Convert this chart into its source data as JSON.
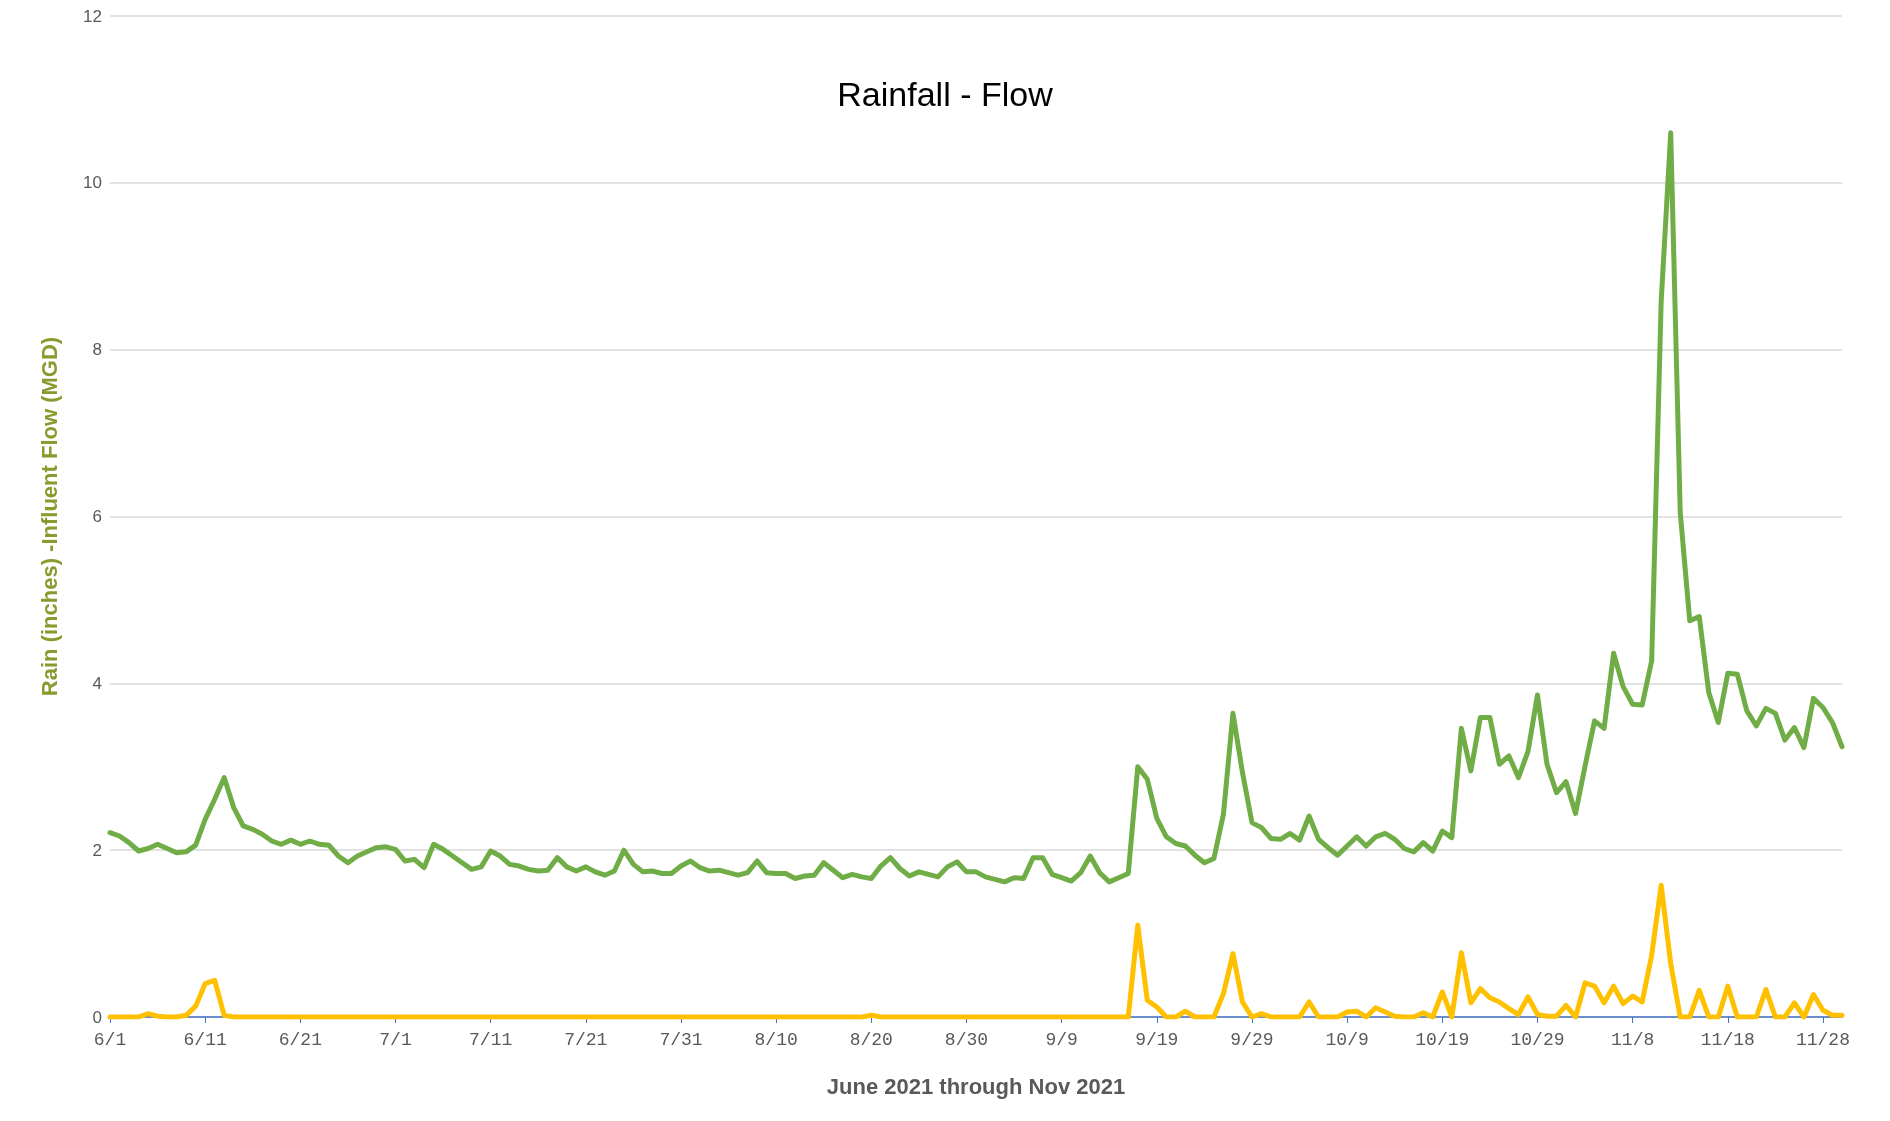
{
  "chart_data": {
    "type": "line",
    "title": "Rainfall - Flow",
    "xlabel": "June 2021 through Nov 2021",
    "ylabel": "Rain (inches) -Influent Flow (MGD)",
    "x": [
      "2021-06-01",
      "2021-06-02",
      "2021-06-03",
      "2021-06-04",
      "2021-06-05",
      "2021-06-06",
      "2021-06-07",
      "2021-06-08",
      "2021-06-09",
      "2021-06-10",
      "2021-06-11",
      "2021-06-12",
      "2021-06-13",
      "2021-06-14",
      "2021-06-15",
      "2021-06-16",
      "2021-06-17",
      "2021-06-18",
      "2021-06-19",
      "2021-06-20",
      "2021-06-21",
      "2021-06-22",
      "2021-06-23",
      "2021-06-24",
      "2021-06-25",
      "2021-06-26",
      "2021-06-27",
      "2021-06-28",
      "2021-06-29",
      "2021-06-30",
      "2021-07-01",
      "2021-07-02",
      "2021-07-03",
      "2021-07-04",
      "2021-07-05",
      "2021-07-06",
      "2021-07-07",
      "2021-07-08",
      "2021-07-09",
      "2021-07-10",
      "2021-07-11",
      "2021-07-12",
      "2021-07-13",
      "2021-07-14",
      "2021-07-15",
      "2021-07-16",
      "2021-07-17",
      "2021-07-18",
      "2021-07-19",
      "2021-07-20",
      "2021-07-21",
      "2021-07-22",
      "2021-07-23",
      "2021-07-24",
      "2021-07-25",
      "2021-07-26",
      "2021-07-27",
      "2021-07-28",
      "2021-07-29",
      "2021-07-30",
      "2021-07-31",
      "2021-08-01",
      "2021-08-02",
      "2021-08-03",
      "2021-08-04",
      "2021-08-05",
      "2021-08-06",
      "2021-08-07",
      "2021-08-08",
      "2021-08-09",
      "2021-08-10",
      "2021-08-11",
      "2021-08-12",
      "2021-08-13",
      "2021-08-14",
      "2021-08-15",
      "2021-08-16",
      "2021-08-17",
      "2021-08-18",
      "2021-08-19",
      "2021-08-20",
      "2021-08-21",
      "2021-08-22",
      "2021-08-23",
      "2021-08-24",
      "2021-08-25",
      "2021-08-26",
      "2021-08-27",
      "2021-08-28",
      "2021-08-29",
      "2021-08-30",
      "2021-08-31",
      "2021-09-01",
      "2021-09-02",
      "2021-09-03",
      "2021-09-04",
      "2021-09-05",
      "2021-09-06",
      "2021-09-07",
      "2021-09-08",
      "2021-09-09",
      "2021-09-10",
      "2021-09-11",
      "2021-09-12",
      "2021-09-13",
      "2021-09-14",
      "2021-09-15",
      "2021-09-16",
      "2021-09-17",
      "2021-09-18",
      "2021-09-19",
      "2021-09-20",
      "2021-09-21",
      "2021-09-22",
      "2021-09-23",
      "2021-09-24",
      "2021-09-25",
      "2021-09-26",
      "2021-09-27",
      "2021-09-28",
      "2021-09-29",
      "2021-09-30",
      "2021-10-01",
      "2021-10-02",
      "2021-10-03",
      "2021-10-04",
      "2021-10-05",
      "2021-10-06",
      "2021-10-07",
      "2021-10-08",
      "2021-10-09",
      "2021-10-10",
      "2021-10-11",
      "2021-10-12",
      "2021-10-13",
      "2021-10-14",
      "2021-10-15",
      "2021-10-16",
      "2021-10-17",
      "2021-10-18",
      "2021-10-19",
      "2021-10-20",
      "2021-10-21",
      "2021-10-22",
      "2021-10-23",
      "2021-10-24",
      "2021-10-25",
      "2021-10-26",
      "2021-10-27",
      "2021-10-28",
      "2021-10-29",
      "2021-10-30",
      "2021-10-31",
      "2021-11-01",
      "2021-11-02",
      "2021-11-03",
      "2021-11-04",
      "2021-11-05",
      "2021-11-06",
      "2021-11-07",
      "2021-11-08",
      "2021-11-09",
      "2021-11-10",
      "2021-11-11",
      "2021-11-12",
      "2021-11-13",
      "2021-11-14",
      "2021-11-15",
      "2021-11-16",
      "2021-11-17",
      "2021-11-18",
      "2021-11-19",
      "2021-11-20",
      "2021-11-21",
      "2021-11-22",
      "2021-11-23",
      "2021-11-24",
      "2021-11-25",
      "2021-11-26",
      "2021-11-27",
      "2021-11-28",
      "2021-11-29",
      "2021-11-30"
    ],
    "series": [
      {
        "color": "#ffc000",
        "values": [
          0,
          0,
          0,
          0,
          0.04,
          0.01,
          0,
          0,
          0.02,
          0.13,
          0.4,
          0.44,
          0.02,
          0,
          0,
          0,
          0,
          0,
          0,
          0,
          0,
          0,
          0,
          0,
          0,
          0,
          0,
          0,
          0,
          0,
          0,
          0,
          0,
          0,
          0,
          0,
          0,
          0,
          0,
          0,
          0,
          0,
          0,
          0,
          0,
          0,
          0,
          0,
          0,
          0,
          0,
          0,
          0,
          0,
          0,
          0,
          0,
          0,
          0,
          0,
          0,
          0,
          0,
          0,
          0,
          0,
          0,
          0,
          0,
          0,
          0,
          0,
          0,
          0,
          0,
          0,
          0,
          0,
          0,
          0,
          0.02,
          0,
          0,
          0,
          0,
          0,
          0,
          0,
          0,
          0,
          0,
          0,
          0,
          0,
          0,
          0,
          0,
          0,
          0,
          0,
          0,
          0,
          0,
          0,
          0,
          0,
          0,
          0,
          1.1,
          0.2,
          0.12,
          0,
          0,
          0.07,
          0,
          0,
          0,
          0.28,
          0.76,
          0.18,
          0,
          0.04,
          0,
          0,
          0,
          0,
          0.18,
          0,
          0,
          0,
          0.06,
          0.07,
          0,
          0.11,
          0.06,
          0.01,
          0,
          0,
          0.05,
          0,
          0.3,
          0,
          0.77,
          0.17,
          0.34,
          0.23,
          0.18,
          0.1,
          0.03,
          0.24,
          0.03,
          0.01,
          0.01,
          0.14,
          0,
          0.41,
          0.37,
          0.17,
          0.37,
          0.16,
          0.25,
          0.18,
          0.74,
          1.58,
          0.64,
          0,
          0,
          0.32,
          0,
          0,
          0.37,
          0,
          0,
          0,
          0.33,
          0,
          0,
          0.17,
          0,
          0.27,
          0.08,
          0.02,
          0.02
        ]
      },
      {
        "color": "#70ad47",
        "values": [
          2.21,
          2.17,
          2.09,
          1.99,
          2.02,
          2.07,
          2.02,
          1.97,
          1.98,
          2.06,
          2.37,
          2.61,
          2.87,
          2.51,
          2.29,
          2.25,
          2.19,
          2.11,
          2.07,
          2.12,
          2.07,
          2.11,
          2.07,
          2.06,
          1.93,
          1.85,
          1.93,
          1.98,
          2.03,
          2.04,
          2.01,
          1.87,
          1.89,
          1.79,
          2.07,
          2.01,
          1.93,
          1.85,
          1.77,
          1.8,
          1.99,
          1.93,
          1.83,
          1.81,
          1.77,
          1.75,
          1.76,
          1.91,
          1.8,
          1.75,
          1.8,
          1.74,
          1.7,
          1.75,
          2.0,
          1.83,
          1.74,
          1.75,
          1.72,
          1.72,
          1.81,
          1.87,
          1.79,
          1.75,
          1.76,
          1.73,
          1.7,
          1.73,
          1.87,
          1.73,
          1.72,
          1.72,
          1.66,
          1.69,
          1.7,
          1.85,
          1.76,
          1.67,
          1.71,
          1.68,
          1.66,
          1.81,
          1.91,
          1.78,
          1.69,
          1.74,
          1.71,
          1.68,
          1.8,
          1.86,
          1.74,
          1.74,
          1.68,
          1.65,
          1.62,
          1.67,
          1.66,
          1.91,
          1.91,
          1.71,
          1.67,
          1.63,
          1.73,
          1.93,
          1.73,
          1.62,
          1.67,
          1.72,
          3.0,
          2.85,
          2.38,
          2.16,
          2.08,
          2.05,
          1.94,
          1.85,
          1.9,
          2.43,
          3.64,
          2.93,
          2.33,
          2.27,
          2.14,
          2.13,
          2.2,
          2.12,
          2.41,
          2.13,
          2.03,
          1.94,
          2.05,
          2.16,
          2.05,
          2.16,
          2.2,
          2.13,
          2.02,
          1.98,
          2.09,
          1.99,
          2.23,
          2.15,
          3.46,
          2.95,
          3.59,
          3.59,
          3.03,
          3.13,
          2.87,
          3.18,
          3.86,
          3.03,
          2.69,
          2.82,
          2.44,
          3.01,
          3.55,
          3.46,
          4.36,
          3.96,
          3.75,
          3.74,
          4.27,
          8.58,
          10.6,
          6.05,
          4.75,
          4.8,
          3.89,
          3.53,
          4.12,
          4.11,
          3.67,
          3.49,
          3.7,
          3.64,
          3.32,
          3.47,
          3.23,
          3.82,
          3.71,
          3.53,
          3.24
        ]
      }
    ],
    "xlim": [
      "2021-06-01",
      "2021-11-30"
    ],
    "xticks": [
      {
        "value": "2021-06-01",
        "label": "6/1"
      },
      {
        "value": "2021-06-11",
        "label": "6/11"
      },
      {
        "value": "2021-06-21",
        "label": "6/21"
      },
      {
        "value": "2021-07-01",
        "label": "7/1"
      },
      {
        "value": "2021-07-11",
        "label": "7/11"
      },
      {
        "value": "2021-07-21",
        "label": "7/21"
      },
      {
        "value": "2021-07-31",
        "label": "7/31"
      },
      {
        "value": "2021-08-10",
        "label": "8/10"
      },
      {
        "value": "2021-08-20",
        "label": "8/20"
      },
      {
        "value": "2021-08-30",
        "label": "8/30"
      },
      {
        "value": "2021-09-09",
        "label": "9/9"
      },
      {
        "value": "2021-09-19",
        "label": "9/19"
      },
      {
        "value": "2021-09-29",
        "label": "9/29"
      },
      {
        "value": "2021-10-09",
        "label": "10/9"
      },
      {
        "value": "2021-10-19",
        "label": "10/19"
      },
      {
        "value": "2021-10-29",
        "label": "10/29"
      },
      {
        "value": "2021-11-08",
        "label": "11/8"
      },
      {
        "value": "2021-11-18",
        "label": "11/18"
      },
      {
        "value": "2021-11-28",
        "label": "11/28"
      }
    ],
    "ylim": [
      0,
      12
    ],
    "yticks": [
      0,
      2,
      4,
      6,
      8,
      10,
      12
    ],
    "grid": "y",
    "marker": "none",
    "line_style": "solid"
  }
}
